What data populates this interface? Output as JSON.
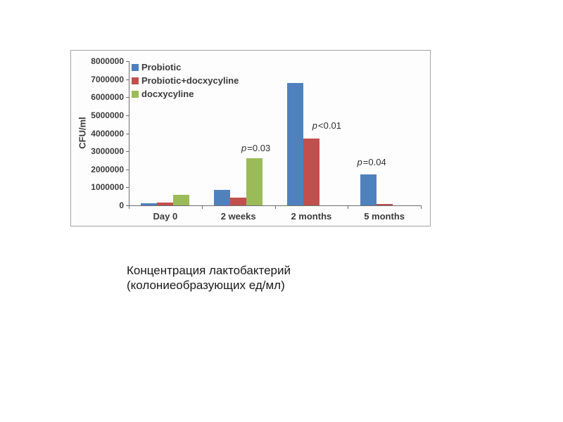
{
  "caption": {
    "line1": "Концентрация лактобактерий",
    "line2": "(колониеобразующих ед/мл)"
  },
  "chart_data": {
    "type": "bar",
    "title": "",
    "xlabel": "",
    "ylabel": "CFU/ml",
    "categories": [
      "Day 0",
      "2 weeks",
      "2 months",
      "5 months"
    ],
    "series": [
      {
        "name": "Probiotic",
        "color": "#4f81bd",
        "values": [
          100000,
          850000,
          6800000,
          1700000
        ]
      },
      {
        "name": "Probiotic+docxycyline",
        "color": "#c0504d",
        "values": [
          160000,
          430000,
          3700000,
          80000
        ]
      },
      {
        "name": "docxycyline",
        "color": "#9bbb59",
        "values": [
          600000,
          2600000,
          0,
          0
        ]
      }
    ],
    "ylim": [
      0,
      8000000
    ],
    "ytick_step": 1000000,
    "grid": false,
    "legend_position": "top-left",
    "annotations": [
      {
        "label": "p=0.03",
        "category": 1,
        "series": 2,
        "dx": 2,
        "gap": 7
      },
      {
        "label": "p<0.01",
        "category": 2,
        "series": 1,
        "dx": 22,
        "gap": 11
      },
      {
        "label": "p=0.04",
        "category": 3,
        "series": 0,
        "dx": 5,
        "gap": 10
      }
    ]
  }
}
